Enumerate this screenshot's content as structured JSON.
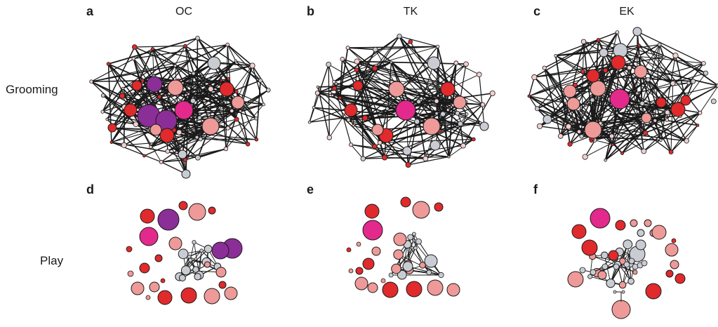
{
  "columns": [
    {
      "letter_top": "a",
      "letter_bottom": "d",
      "title": "OC"
    },
    {
      "letter_top": "b",
      "letter_bottom": "e",
      "title": "TK"
    },
    {
      "letter_top": "c",
      "letter_bottom": "f",
      "title": "EK"
    }
  ],
  "rows": [
    {
      "label": "Grooming"
    },
    {
      "label": "Play"
    }
  ],
  "colors": {
    "grey": "#c9ccd3",
    "pink": "#ee9a98",
    "red": "#e02a2c",
    "magenta": "#e3298b",
    "purple": "#8b2e97",
    "edge": "#1a1a1a"
  }
}
